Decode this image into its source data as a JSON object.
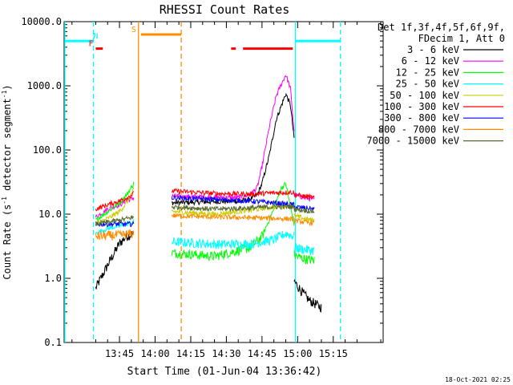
{
  "chart_data": {
    "type": "line",
    "title": "RHESSI Count Rates",
    "xlabel": "Start Time (01-Jun-04 13:36:42)",
    "ylabel_main": "Count Rate (s",
    "ylabel_sup": "-1",
    "ylabel_tail": " detector segment",
    "ylabel_sup2": "-1",
    "ylabel_end": ")",
    "y_scale": "log",
    "ylim": [
      0.1,
      10000
    ],
    "xlim_min": [
      -23.3,
      111.0
    ],
    "x_ticks": [
      {
        "min": 0,
        "label": "13:45"
      },
      {
        "min": 15,
        "label": "14:00"
      },
      {
        "min": 30,
        "label": "14:15"
      },
      {
        "min": 45,
        "label": "14:30"
      },
      {
        "min": 60,
        "label": "14:45"
      },
      {
        "min": 75,
        "label": "15:00"
      },
      {
        "min": 90,
        "label": "15:15"
      }
    ],
    "y_ticks": [
      {
        "value": 0.1,
        "label": "0.1"
      },
      {
        "value": 1,
        "label": "1.0"
      },
      {
        "value": 10,
        "label": "10.0"
      },
      {
        "value": 100,
        "label": "100.0"
      },
      {
        "value": 1000,
        "label": "1000.0"
      },
      {
        "value": 10000,
        "label": "10000.0"
      }
    ],
    "legend_header": [
      "Det 1f,3f,4f,5f,6f,9f,",
      "FDecim 1, Att 0"
    ],
    "series": [
      {
        "name": "3 - 6 keV",
        "color": "#000000",
        "seg1": {
          "x": [
            -10,
            -5,
            0,
            3,
            6
          ],
          "y": [
            0.7,
            1.6,
            3.5,
            4.5,
            5.0
          ]
        },
        "seg2": {
          "x": [
            22,
            50,
            55,
            58,
            60,
            63,
            66,
            70,
            72,
            73.5
          ],
          "y": [
            15,
            16,
            17,
            20,
            30,
            80,
            300,
            750,
            500,
            150
          ]
        },
        "seg3": {
          "x": [
            73.5,
            77,
            80,
            85
          ],
          "y": [
            0.9,
            0.6,
            0.45,
            0.35
          ]
        }
      },
      {
        "name": "6 - 12 keV",
        "color": "#ff00ff",
        "seg1": {
          "x": [
            -10,
            -5,
            0,
            3,
            6
          ],
          "y": [
            9,
            12,
            14,
            16,
            18
          ]
        },
        "seg2": {
          "x": [
            22,
            50,
            55,
            58,
            60,
            63,
            66,
            70,
            72,
            73.5
          ],
          "y": [
            19,
            18,
            20,
            26,
            55,
            220,
            700,
            1500,
            900,
            200
          ]
        },
        "seg3": {
          "x": [
            73.5,
            78,
            82
          ],
          "y": [
            20,
            18,
            17
          ]
        }
      },
      {
        "name": "12 - 25 keV",
        "color": "#00ff00",
        "seg1": {
          "x": [
            -10,
            -5,
            0,
            3,
            6
          ],
          "y": [
            8,
            11,
            15,
            20,
            30
          ]
        },
        "seg2": {
          "x": [
            22,
            40,
            55,
            60,
            65,
            68,
            70,
            73.5
          ],
          "y": [
            2.5,
            2.2,
            3.0,
            4.5,
            12,
            25,
            30,
            7
          ]
        },
        "seg3": {
          "x": [
            73.5,
            78,
            82
          ],
          "y": [
            2.3,
            2.0,
            1.9
          ]
        }
      },
      {
        "name": "25 - 50 keV",
        "color": "#00ffff",
        "seg1": {
          "x": [
            -10,
            -5,
            0,
            3,
            6
          ],
          "y": [
            5,
            6,
            6.5,
            7,
            7.5
          ]
        },
        "seg2": {
          "x": [
            22,
            40,
            55,
            65,
            70,
            73.5
          ],
          "y": [
            3.7,
            3.4,
            3.4,
            4.0,
            5.0,
            4.5
          ]
        },
        "seg3": {
          "x": [
            73.5,
            78,
            82
          ],
          "y": [
            3.0,
            2.8,
            2.7
          ]
        }
      },
      {
        "name": "50 - 100 keV",
        "color": "#cccc00",
        "seg1": {
          "x": [
            -10,
            -5,
            0,
            3,
            6
          ],
          "y": [
            7,
            8.5,
            11,
            15,
            24
          ]
        },
        "seg2": {
          "x": [
            22,
            40,
            55,
            65,
            73.5
          ],
          "y": [
            11,
            10,
            11.5,
            13,
            14
          ]
        },
        "seg3": {
          "x": [
            73.5,
            78,
            82
          ],
          "y": [
            9.5,
            8.5,
            8
          ]
        }
      },
      {
        "name": "100 - 300 keV",
        "color": "#ff0000",
        "seg1": {
          "x": [
            -10,
            -5,
            0,
            3,
            6
          ],
          "y": [
            12,
            14,
            16,
            18,
            21
          ]
        },
        "seg2": {
          "x": [
            22,
            40,
            55,
            65,
            73.5
          ],
          "y": [
            23,
            21,
            20.5,
            21.5,
            22
          ]
        },
        "seg3": {
          "x": [
            73.5,
            78,
            82
          ],
          "y": [
            20,
            19,
            18
          ]
        }
      },
      {
        "name": "300 - 800 keV",
        "color": "#0000ff",
        "seg1": {
          "x": [
            -10,
            -5,
            0,
            3,
            6
          ],
          "y": [
            7,
            7,
            7,
            7,
            7
          ]
        },
        "seg2": {
          "x": [
            22,
            40,
            55,
            65,
            73.5
          ],
          "y": [
            18,
            17,
            16,
            15,
            14
          ]
        },
        "seg3": {
          "x": [
            73.5,
            78,
            82
          ],
          "y": [
            13,
            12.5,
            12
          ]
        }
      },
      {
        "name": "800 - 7000 keV",
        "color": "#ff8c00",
        "seg1": {
          "x": [
            -10,
            -5,
            0,
            3,
            6
          ],
          "y": [
            4.5,
            4.6,
            4.7,
            4.8,
            5.0
          ]
        },
        "seg2": {
          "x": [
            22,
            40,
            55,
            65,
            73.5
          ],
          "y": [
            9.5,
            9,
            8.8,
            8.6,
            8.4
          ]
        },
        "seg3": {
          "x": [
            73.5,
            78,
            82
          ],
          "y": [
            8,
            7.5,
            7.3
          ]
        }
      },
      {
        "name": "7000 - 15000 keV",
        "color": "#556b2f",
        "seg1": {
          "x": [
            -10,
            -5,
            0,
            3,
            6
          ],
          "y": [
            7,
            7.5,
            8,
            8.5,
            9
          ]
        },
        "seg2": {
          "x": [
            22,
            40,
            55,
            65,
            73.5
          ],
          "y": [
            13,
            12,
            12.5,
            13,
            13
          ]
        },
        "seg3": {
          "x": [
            73.5,
            78,
            82
          ],
          "y": [
            12,
            11.5,
            11
          ]
        }
      }
    ],
    "vlines": [
      {
        "x": -23,
        "color": "#00ffff",
        "style": "solid"
      },
      {
        "x": -11,
        "color": "#00ffff",
        "style": "dashed"
      },
      {
        "x": 8,
        "color": "#ff8c00",
        "style": "solid"
      },
      {
        "x": 26,
        "color": "#ff8c00",
        "style": "dashed"
      },
      {
        "x": 74,
        "color": "#00ffff",
        "style": "solid"
      },
      {
        "x": 93,
        "color": "#00ffff",
        "style": "dashed"
      }
    ],
    "flag_bars": [
      {
        "x1": -23,
        "x2": -11,
        "y": 5000,
        "color": "#00ffff"
      },
      {
        "x1": -10,
        "x2": -7,
        "y": 3800,
        "color": "#ff0000"
      },
      {
        "x1": 9,
        "x2": 26,
        "y": 6300,
        "color": "#ff8c00"
      },
      {
        "x1": 47,
        "x2": 49,
        "y": 3800,
        "color": "#ff0000"
      },
      {
        "x1": 52,
        "x2": 73,
        "y": 3800,
        "color": "#ff0000"
      },
      {
        "x1": 74,
        "x2": 93,
        "y": 5000,
        "color": "#00ffff"
      }
    ],
    "flag_labels": [
      {
        "text": "N",
        "x": -10,
        "y": 5000,
        "color": "#00ffff"
      },
      {
        "text": "F",
        "x": -12,
        "y": 3800,
        "color": "#ff0000"
      },
      {
        "text": "S",
        "x": 6,
        "y": 6300,
        "color": "#ff8c00"
      }
    ],
    "timestamp": "18-Oct-2021 02:25"
  }
}
